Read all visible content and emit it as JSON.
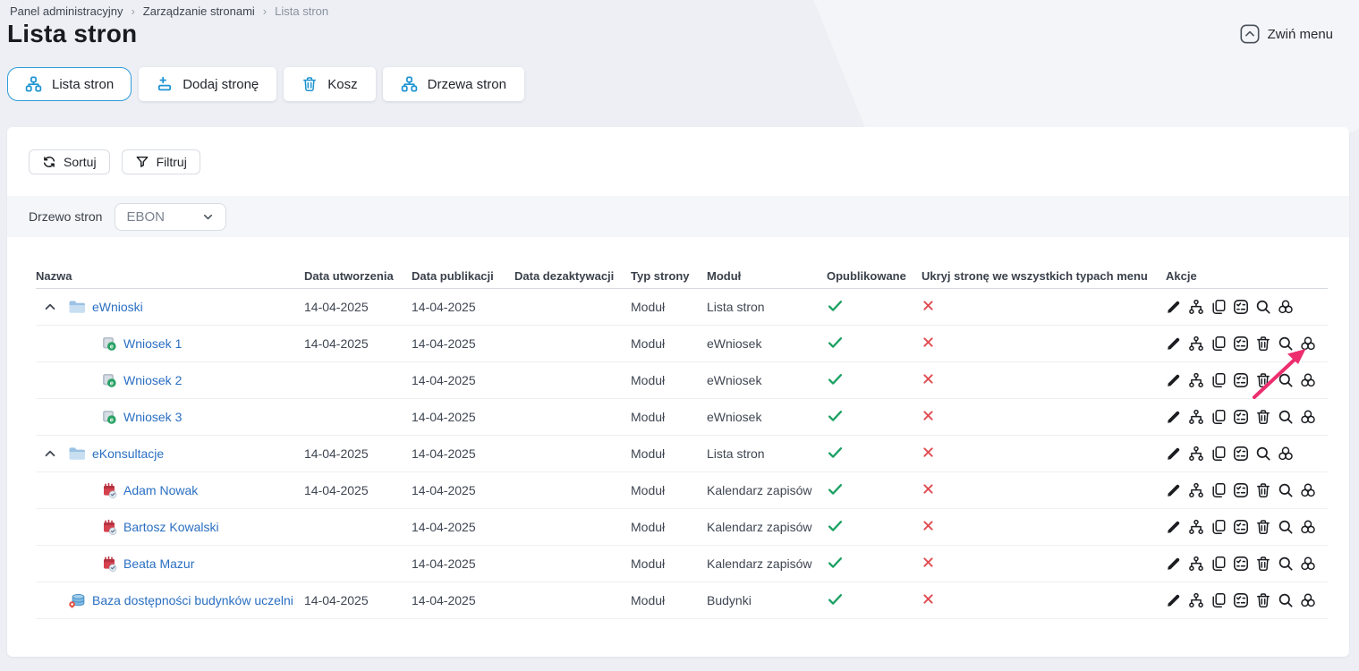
{
  "breadcrumb": {
    "separator": "›",
    "items": [
      "Panel administracyjny",
      "Zarządzanie stronami",
      "Lista stron"
    ]
  },
  "page_title": "Lista stron",
  "collapse_menu": {
    "label": "Zwiń menu"
  },
  "toolbar": {
    "tabs": [
      {
        "label": "Lista stron",
        "icon": "sitemap",
        "active": true
      },
      {
        "label": "Dodaj stronę",
        "icon": "page-plus",
        "active": false
      },
      {
        "label": "Kosz",
        "icon": "trash",
        "active": false
      },
      {
        "label": "Drzewa stron",
        "icon": "sitemap",
        "active": false
      }
    ]
  },
  "filters": {
    "sort_label": "Sortuj",
    "filter_label": "Filtruj"
  },
  "tree_select": {
    "label": "Drzewo stron",
    "value": "EBON"
  },
  "table": {
    "columns": [
      "Nazwa",
      "Data utworzenia",
      "Data publikacji",
      "Data dezaktywacji",
      "Typ strony",
      "Moduł",
      "Opublikowane",
      "Ukryj stronę we wszystkich typach menu",
      "Akcje"
    ],
    "rows": [
      {
        "name": "eWnioski",
        "icon": "folder",
        "level": 0,
        "chevron": true,
        "created": "14-04-2025",
        "published": "14-04-2025",
        "deactivated": "",
        "type": "Moduł",
        "module": "Lista stron",
        "is_published": true,
        "hidden_in_menus": false,
        "actions": [
          "edit",
          "structure",
          "copy",
          "form",
          "search",
          "cluster"
        ],
        "arrow": false
      },
      {
        "name": "Wniosek 1",
        "icon": "ewniosek",
        "level": 1,
        "chevron": false,
        "created": "14-04-2025",
        "published": "14-04-2025",
        "deactivated": "",
        "type": "Moduł",
        "module": "eWniosek",
        "is_published": true,
        "hidden_in_menus": false,
        "actions": [
          "edit",
          "structure",
          "copy",
          "form",
          "trash",
          "search",
          "cluster"
        ],
        "arrow": true
      },
      {
        "name": "Wniosek 2",
        "icon": "ewniosek",
        "level": 1,
        "chevron": false,
        "created": "",
        "published": "14-04-2025",
        "deactivated": "",
        "type": "Moduł",
        "module": "eWniosek",
        "is_published": true,
        "hidden_in_menus": false,
        "actions": [
          "edit",
          "structure",
          "copy",
          "form",
          "trash",
          "search",
          "cluster"
        ],
        "arrow": false
      },
      {
        "name": "Wniosek 3",
        "icon": "ewniosek",
        "level": 1,
        "chevron": false,
        "created": "",
        "published": "14-04-2025",
        "deactivated": "",
        "type": "Moduł",
        "module": "eWniosek",
        "is_published": true,
        "hidden_in_menus": false,
        "actions": [
          "edit",
          "structure",
          "copy",
          "form",
          "trash",
          "search",
          "cluster"
        ],
        "arrow": false
      },
      {
        "name": "eKonsultacje",
        "icon": "folder",
        "level": 0,
        "chevron": true,
        "created": "14-04-2025",
        "published": "14-04-2025",
        "deactivated": "",
        "type": "Moduł",
        "module": "Lista stron",
        "is_published": true,
        "hidden_in_menus": false,
        "actions": [
          "edit",
          "structure",
          "copy",
          "form",
          "search",
          "cluster"
        ],
        "arrow": false
      },
      {
        "name": "Adam Nowak",
        "icon": "calendar",
        "level": 1,
        "chevron": false,
        "created": "14-04-2025",
        "published": "14-04-2025",
        "deactivated": "",
        "type": "Moduł",
        "module": "Kalendarz zapisów",
        "is_published": true,
        "hidden_in_menus": false,
        "actions": [
          "edit",
          "structure",
          "copy",
          "form",
          "trash",
          "search",
          "cluster"
        ],
        "arrow": false
      },
      {
        "name": "Bartosz Kowalski",
        "icon": "calendar",
        "level": 1,
        "chevron": false,
        "created": "",
        "published": "14-04-2025",
        "deactivated": "",
        "type": "Moduł",
        "module": "Kalendarz zapisów",
        "is_published": true,
        "hidden_in_menus": false,
        "actions": [
          "edit",
          "structure",
          "copy",
          "form",
          "trash",
          "search",
          "cluster"
        ],
        "arrow": false
      },
      {
        "name": "Beata Mazur",
        "icon": "calendar",
        "level": 1,
        "chevron": false,
        "created": "",
        "published": "14-04-2025",
        "deactivated": "",
        "type": "Moduł",
        "module": "Kalendarz zapisów",
        "is_published": true,
        "hidden_in_menus": false,
        "actions": [
          "edit",
          "structure",
          "copy",
          "form",
          "trash",
          "search",
          "cluster"
        ],
        "arrow": false
      },
      {
        "name": "Baza dostępności budynków uczelni",
        "icon": "database-pin",
        "level": 0,
        "chevron": false,
        "created": "14-04-2025",
        "published": "14-04-2025",
        "deactivated": "",
        "type": "Moduł",
        "module": "Budynki",
        "is_published": true,
        "hidden_in_menus": false,
        "actions": [
          "edit",
          "structure",
          "copy",
          "form",
          "trash",
          "search",
          "cluster"
        ],
        "arrow": false
      }
    ]
  },
  "annotation": {
    "type": "arrow",
    "color": "#ec2e6e"
  },
  "colors": {
    "accent_blue": "#1d93d2",
    "link_blue": "#2a6fc2",
    "success_green": "#1aa062",
    "danger_red": "#e04d52",
    "page_bg": "#edeff4",
    "band_bg": "#f4f6f9"
  }
}
